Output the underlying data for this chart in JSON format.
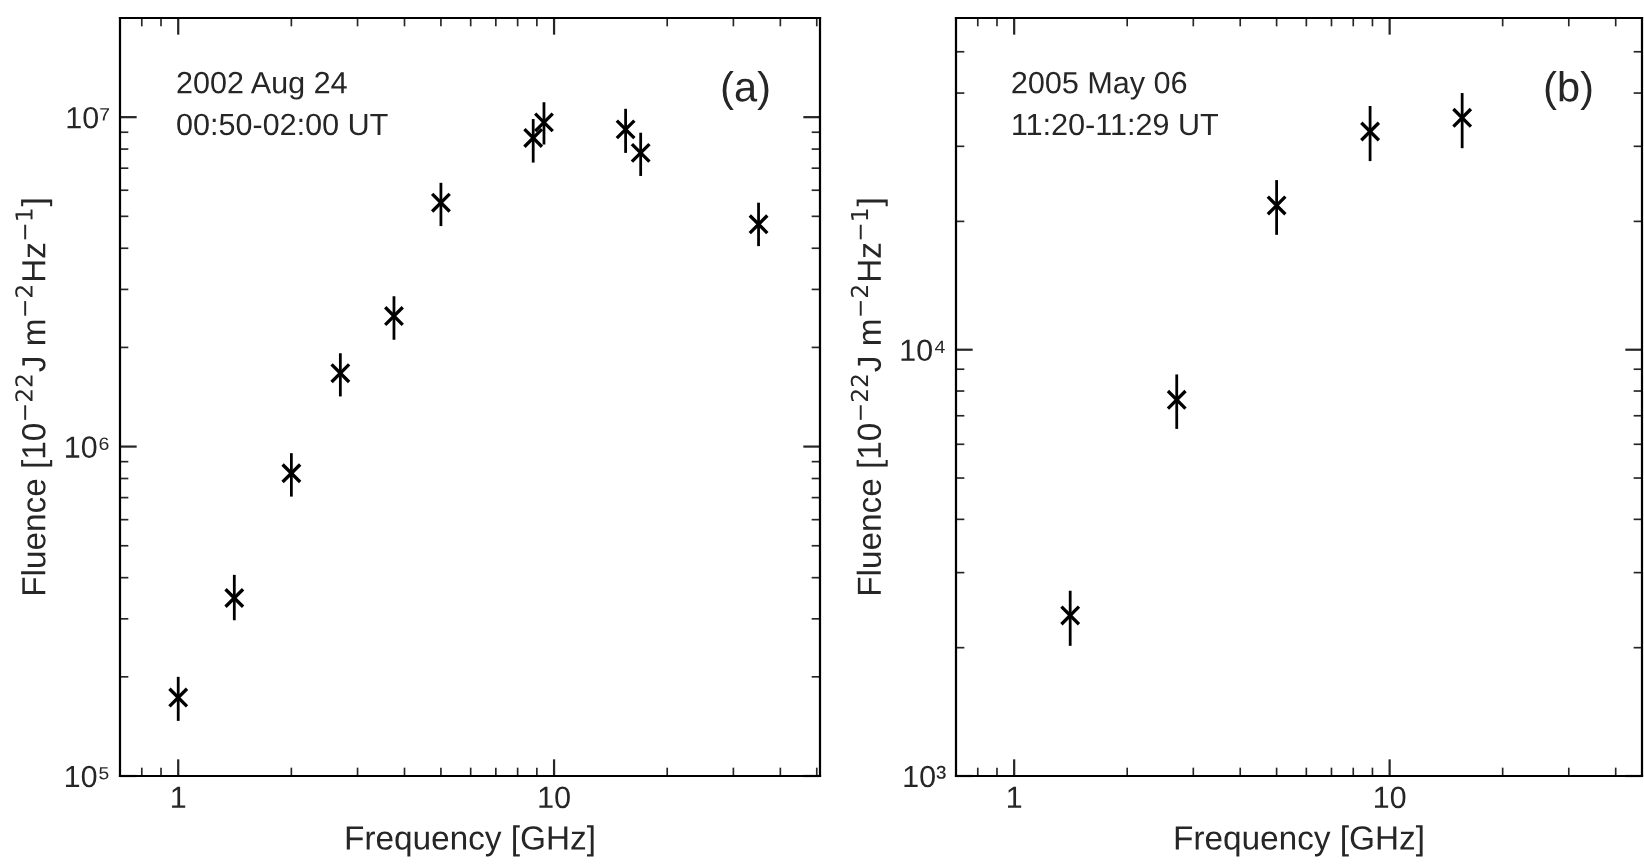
{
  "chart_data": [
    {
      "type": "scatter",
      "xlabel": "Frequency [GHz]",
      "ylabel": "Fluence [10$^{−22}$J m$^{−2}$Hz$^{−1}$]",
      "annotations": [
        "2002 Aug 24\n00:50-02:00 UT",
        "(a)"
      ],
      "x": [
        1,
        1.41,
        2,
        2.7,
        3.75,
        5,
        8.8,
        9.4,
        15.5,
        17,
        35
      ],
      "values": [
        173000.0,
        347000.0,
        830000.0,
        1670000.0,
        2490000.0,
        5500000.0,
        8650000.0,
        9640000.0,
        9180000.0,
        7790000.0,
        4730000.0
      ],
      "errors": [
        [
          147000.0,
          200000.0
        ],
        [
          297000.0,
          408000.0
        ],
        [
          705000.0,
          955000.0
        ],
        [
          1420000.0,
          1920000.0
        ],
        [
          2110000.0,
          2860000.0
        ],
        [
          4670000.0,
          6320000.0
        ],
        [
          7280000.0,
          9870000.0
        ],
        [
          8260000.0,
          11100000.0
        ],
        [
          7790000.0,
          10600000.0
        ],
        [
          6630000.0,
          8970000.0
        ],
        [
          4060000.0,
          5500000.0
        ]
      ],
      "color": "#000000",
      "marker": "cross",
      "log": "xy",
      "grid": false,
      "xlim": [
        0.7,
        51
      ],
      "xticks": [
        1,
        10
      ],
      "ylim": [
        100000.0,
        20000000.0
      ],
      "yticks": [
        {
          "value": 100000,
          "label": "10⁵"
        },
        {
          "value": 1000000,
          "label": "10⁶"
        },
        {
          "value": 10000000,
          "label": "10⁷"
        }
      ]
    },
    {
      "type": "scatter",
      "xlabel": "Frequency [GHz]",
      "ylabel": "Fluence [10$^{−22}$J m$^{−2}$Hz$^{−1}$]",
      "annotations": [
        "2005 May 06\n11:20-11:29 UT",
        "(b)"
      ],
      "x": [
        1.41,
        2.71,
        5,
        8.87,
        15.6
      ],
      "values": [
        2380,
        7630,
        21800,
        32500,
        35000
      ],
      "errors": [
        [
          2020,
          2720
        ],
        [
          6520,
          8750
        ],
        [
          18600,
          25000
        ],
        [
          27700,
          37300
        ],
        [
          29700,
          40000
        ]
      ],
      "color": "#000000",
      "marker": "cross",
      "log": "xy",
      "grid": false,
      "xlim": [
        0.7,
        47
      ],
      "xticks": [
        1,
        10
      ],
      "ylim": [
        1000,
        60000
      ],
      "yticks": [
        {
          "value": 1000,
          "label": "10³"
        },
        {
          "value": 10000,
          "label": "10⁴"
        }
      ]
    }
  ]
}
